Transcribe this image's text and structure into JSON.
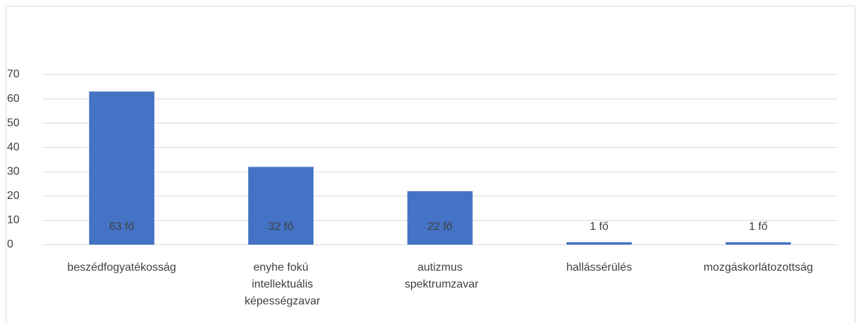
{
  "chart_data": {
    "type": "bar",
    "categories": [
      "beszédfogyatékosság",
      "enyhe fokú intellektuális képességzavar",
      "autizmus spektrumzavar",
      "hallássérülés",
      "mozgáskorlátozottság"
    ],
    "values": [
      63,
      32,
      22,
      1,
      1
    ],
    "value_labels": [
      "63 fő",
      "32 fő",
      "22 fő",
      "1 fő",
      "1 fő"
    ],
    "color": "#4472c4",
    "ylim": [
      0,
      70
    ],
    "yticks": [
      0,
      10,
      20,
      30,
      40,
      50,
      60,
      70
    ],
    "grid": true
  }
}
